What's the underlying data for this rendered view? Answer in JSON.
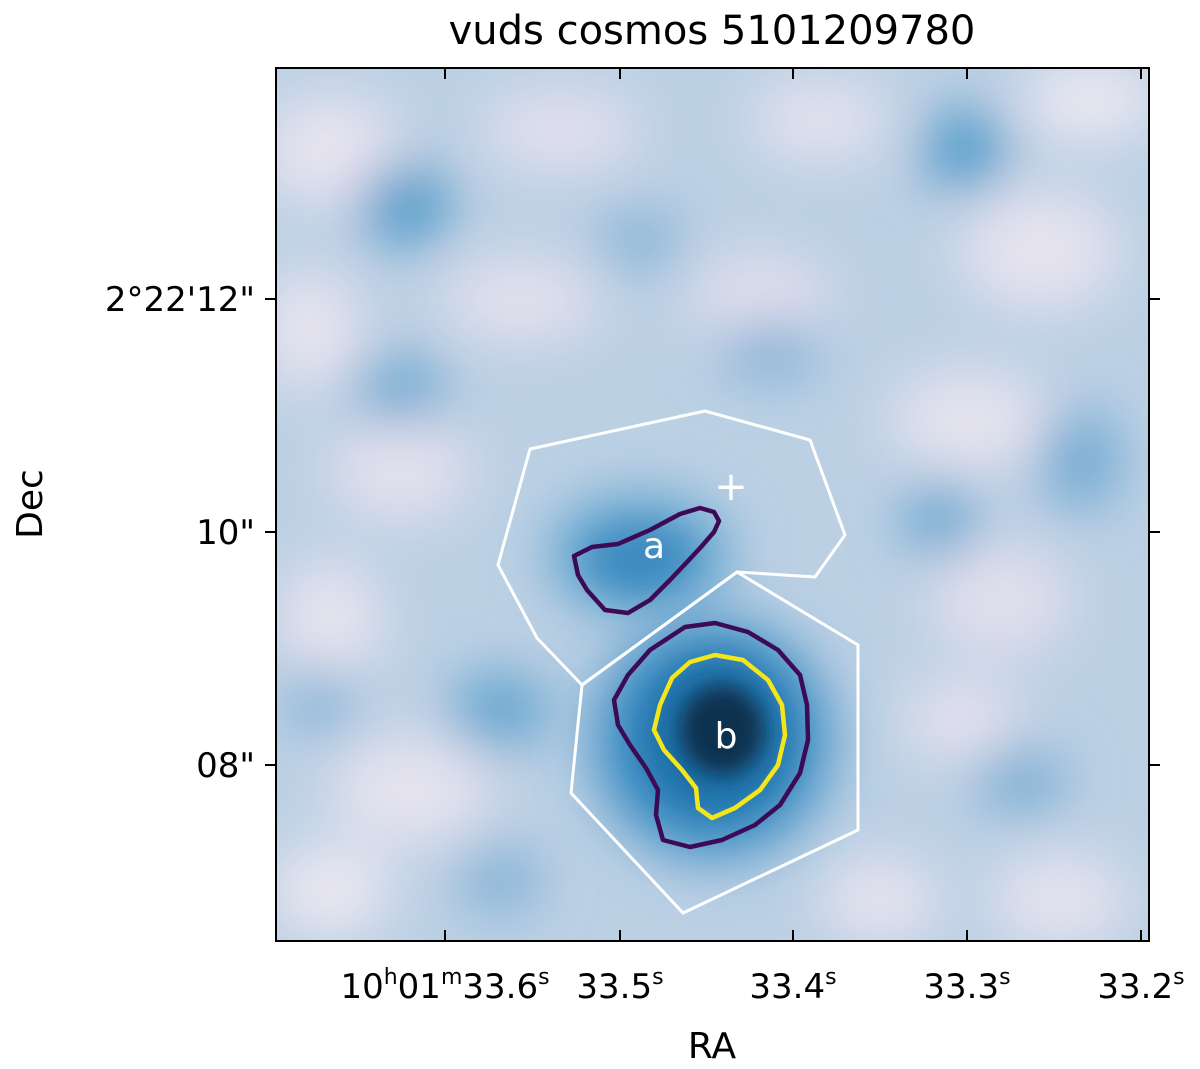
{
  "chart_data": {
    "type": "heatmap",
    "title": "vuds cosmos 5101209780",
    "xlabel": "RA",
    "ylabel": "Dec",
    "colormap": "white-to-blue",
    "x_ticks": [
      {
        "main": "10",
        "unit1": "h",
        "min": "01",
        "unit2": "m",
        "sec": "33.6",
        "unit3": "s"
      },
      {
        "sec": "33.5",
        "unit3": "s"
      },
      {
        "sec": "33.4",
        "unit3": "s"
      },
      {
        "sec": "33.3",
        "unit3": "s"
      },
      {
        "sec": "33.2",
        "unit3": "s"
      }
    ],
    "y_ticks": [
      "2°22'12\"",
      "10\"",
      "08\""
    ],
    "regions": [
      {
        "label": "a",
        "contour_color": "#3d0b55"
      },
      {
        "label": "b",
        "contour_color": "#3d0b55",
        "inner_contour_color": "#f5e61c"
      }
    ],
    "marker": "+",
    "polygon_color": "#ffffff",
    "colors": {
      "background_light": "#e6e3ef",
      "mid_blue": "#4a97c7",
      "dark_blue": "#08304f",
      "contour_dark": "#3d0b55",
      "contour_yellow": "#f5e61c"
    }
  }
}
